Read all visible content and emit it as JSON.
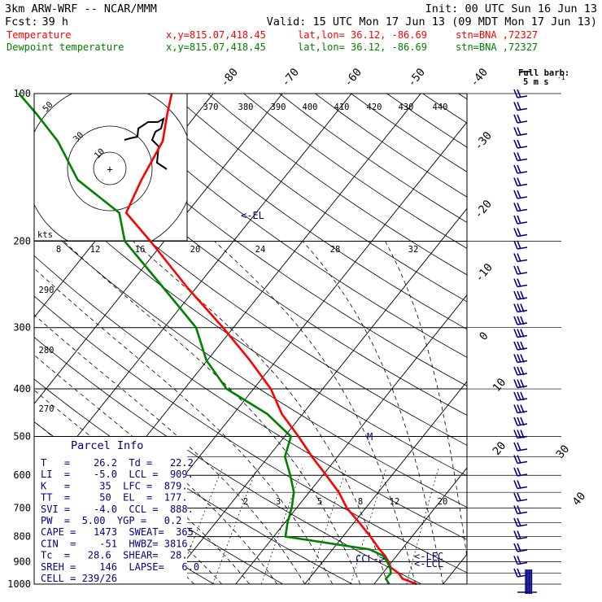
{
  "header": {
    "model": "3km ARW-WRF -- NCAR/MMM",
    "init": "Init: 00 UTC Sun 16 Jun 13",
    "fcst_label": "Fcst:",
    "fcst_value": "39 h",
    "valid": "Valid: 15 UTC Mon 17 Jun 13 (09 MDT Mon 17 Jun 13)",
    "temperature_line": {
      "label": "Temperature",
      "xy": "x,y=815.07,418.45",
      "latlon": "lat,lon= 36.12, -86.69",
      "stn": "stn=BNA ,72327"
    },
    "dewpoint_line": {
      "label": "Dewpoint temperature",
      "xy": "x,y=815.07,418.45",
      "latlon": "lat,lon= 36.12, -86.69",
      "stn": "stn=BNA ,72327"
    }
  },
  "colors": {
    "temperature": "#ff0000",
    "dewpoint": "#008000",
    "parcel_text": "#000080",
    "wind_barbs": "#000080",
    "grid": "#000000"
  },
  "barb_legend": {
    "title": "Full barb:",
    "value": "5 m s",
    "exponent": "-1"
  },
  "hodograph": {
    "ring_labels": [
      "50",
      "30",
      "10"
    ],
    "axis_label": "kts",
    "center_marker": "+"
  },
  "parcel_info": {
    "title": "Parcel Info",
    "rows": [
      "T   =    26.2  Td =   22.2",
      "LI  =    -5.0  LCL =  909.",
      "K   =     35  LFC =  879.",
      "TT  =     50  EL  =  177.",
      "SVI =    -4.0  CCL =  888.",
      "PW  =  5.00  YGP =   0.2",
      "CAPE =   1473  SWEAT=  365",
      "CIN  =    -51  HWBZ= 3816.",
      "Tc  =   28.6  SHEAR=  28.",
      "SREH =    146  LAPSE=   6.0",
      "CELL = 239/26"
    ]
  },
  "markers": {
    "el": "<-EL",
    "lfc": "<-LFC",
    "lcl": "<-LCL",
    "ccl": "CCL->",
    "m": "M"
  },
  "chart_data": {
    "type": "line",
    "title": "",
    "y_axis": "Pressure (hPa), log scale",
    "pressure_ticks": [
      100,
      200,
      300,
      400,
      500,
      600,
      700,
      800,
      900,
      1000
    ],
    "isotherm_labels": [
      "-80",
      "-70",
      "-60",
      "-50",
      "-40",
      "-30",
      "-20",
      "-10",
      "0",
      "10",
      "20",
      "30",
      "40"
    ],
    "theta_labels": [
      "370",
      "380",
      "390",
      "400",
      "410",
      "420",
      "430",
      "440"
    ],
    "theta_left_labels": [
      "290",
      "280",
      "270"
    ],
    "mixing_ratio_upper": [
      "8",
      "12",
      "16",
      "20",
      "24",
      "28",
      "32"
    ],
    "mixing_ratio_lower": [
      "2",
      "3",
      "5",
      "8",
      "12",
      "20"
    ],
    "series": [
      {
        "name": "Temperature",
        "points": [
          [
            1000,
            26.2
          ],
          [
            975,
            23.5
          ],
          [
            950,
            22.3
          ],
          [
            925,
            20.5
          ],
          [
            900,
            19.5
          ],
          [
            875,
            18.3
          ],
          [
            850,
            16.8
          ],
          [
            800,
            14.0
          ],
          [
            750,
            10.8
          ],
          [
            700,
            7.3
          ],
          [
            650,
            4.3
          ],
          [
            600,
            0.5
          ],
          [
            550,
            -3.7
          ],
          [
            500,
            -8.0
          ],
          [
            450,
            -13.0
          ],
          [
            400,
            -17.5
          ],
          [
            350,
            -23.8
          ],
          [
            300,
            -31.5
          ],
          [
            250,
            -41.0
          ],
          [
            200,
            -52.0
          ],
          [
            175,
            -58.8
          ],
          [
            150,
            -60.4
          ],
          [
            125,
            -61.8
          ],
          [
            110,
            -64.3
          ],
          [
            100,
            -66.0
          ]
        ]
      },
      {
        "name": "Dewpoint temperature",
        "points": [
          [
            1000,
            22.2
          ],
          [
            975,
            21.1
          ],
          [
            950,
            21.2
          ],
          [
            925,
            20.4
          ],
          [
            900,
            19.3
          ],
          [
            875,
            18.0
          ],
          [
            850,
            15.4
          ],
          [
            800,
            1.7
          ],
          [
            750,
            0.4
          ],
          [
            700,
            -0.7
          ],
          [
            650,
            -2.2
          ],
          [
            600,
            -4.7
          ],
          [
            550,
            -7.6
          ],
          [
            500,
            -9.1
          ],
          [
            450,
            -15.1
          ],
          [
            400,
            -23.9
          ],
          [
            350,
            -30.1
          ],
          [
            300,
            -35.4
          ],
          [
            250,
            -44.5
          ],
          [
            200,
            -55.7
          ],
          [
            175,
            -59.8
          ],
          [
            150,
            -69.6
          ],
          [
            125,
            -77.0
          ],
          [
            110,
            -83.2
          ],
          [
            100,
            -88.1
          ]
        ]
      }
    ],
    "wind_barbs_note": "Wind barbs plotted along right edge at many pressure levels; full barb = 5 m/s"
  }
}
